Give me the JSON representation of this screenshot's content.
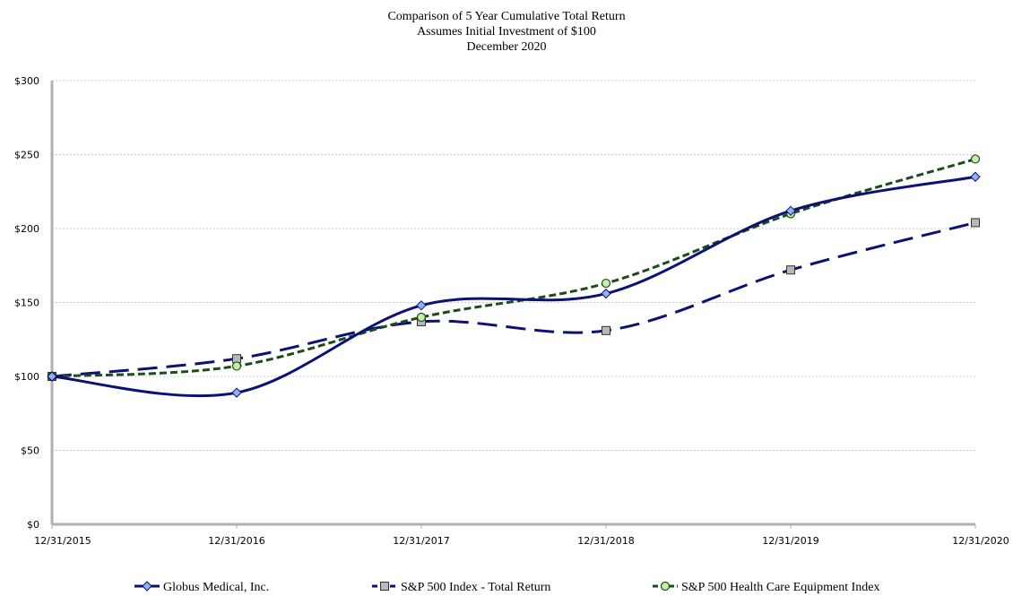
{
  "chart_data": {
    "type": "line",
    "title": [
      "Comparison of 5 Year Cumulative Total Return",
      "Assumes Initial Investment of $100",
      "December 2020"
    ],
    "categories": [
      "12/31/2015",
      "12/31/2016",
      "12/31/2017",
      "12/31/2018",
      "12/31/2019",
      "12/31/2020"
    ],
    "ylim": [
      0,
      300
    ],
    "yticks": [
      0,
      50,
      100,
      150,
      200,
      250,
      300
    ],
    "ytick_labels": [
      "$0",
      "$50",
      "$100",
      "$150",
      "$200",
      "$250",
      "$300"
    ],
    "grid": true,
    "legend_position": "bottom",
    "series": [
      {
        "name": "Globus Medical, Inc.",
        "values": [
          100,
          89,
          148,
          156,
          212,
          235
        ],
        "color": "#0d1075",
        "line_style": "solid",
        "marker": "diamond",
        "marker_fill": "#8db4f0"
      },
      {
        "name": "S&P 500 Index - Total Return",
        "values": [
          100,
          112,
          137,
          131,
          172,
          204
        ],
        "color": "#0d1075",
        "line_style": "long-dash",
        "marker": "square",
        "marker_fill": "#b8b8b8"
      },
      {
        "name": "S&P 500 Health Care Equipment Index",
        "values": [
          100,
          107,
          140,
          163,
          210,
          247
        ],
        "color": "#1a4d1a",
        "line_style": "short-dash",
        "marker": "circle",
        "marker_fill": "#c5f0a8"
      }
    ]
  }
}
